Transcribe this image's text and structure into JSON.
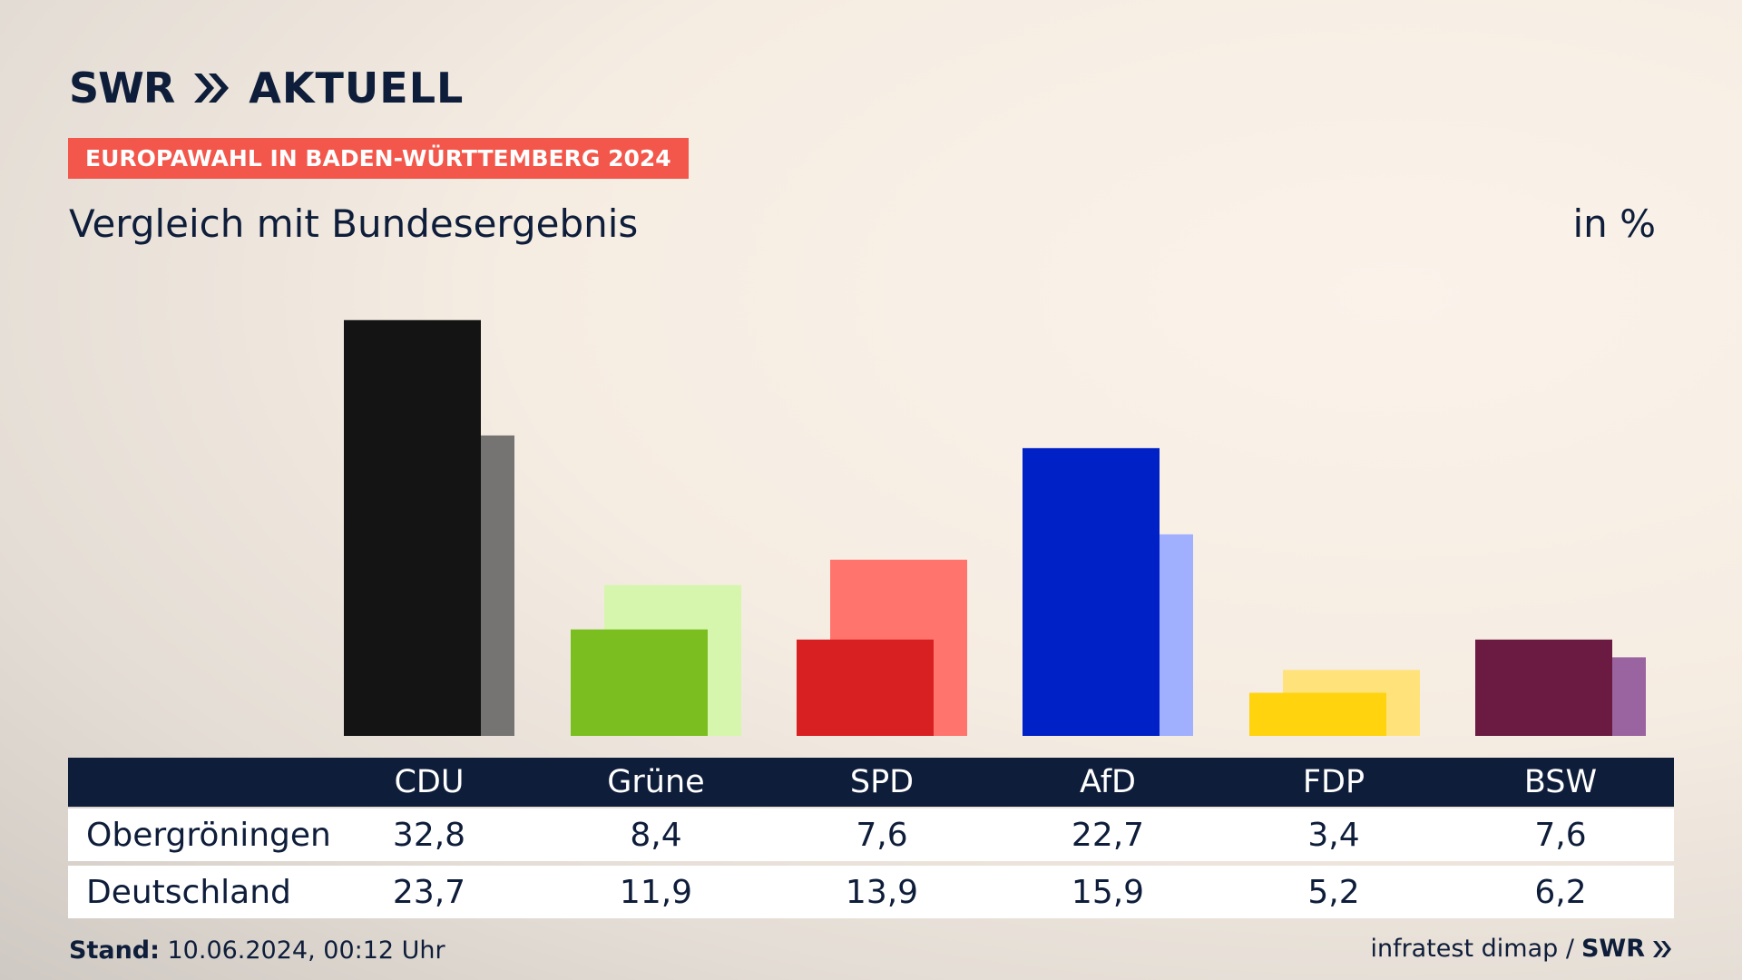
{
  "brand": {
    "swr": "SWR",
    "aktuell": "AKTUELL",
    "icon": "double-chevron-right-icon"
  },
  "topic": "EUROPAWAHL IN BADEN-WÜRTTEMBERG 2024",
  "subtitle": "Vergleich mit Bundesergebnis",
  "unit": "in %",
  "colors": {
    "navy": "#0e1d3a",
    "badge": "#f3564a"
  },
  "chart_data": {
    "type": "bar",
    "categories": [
      "CDU",
      "Grüne",
      "SPD",
      "AfD",
      "FDP",
      "BSW"
    ],
    "series": [
      {
        "name": "Obergröningen",
        "values": [
          32.8,
          8.4,
          7.6,
          22.7,
          3.4,
          7.6
        ],
        "colors": [
          "#141414",
          "#7abf1f",
          "#d81f22",
          "#0021c6",
          "#ffd30e",
          "#6b1a42"
        ]
      },
      {
        "name": "Deutschland",
        "values": [
          23.7,
          11.9,
          13.9,
          15.9,
          5.2,
          6.2
        ],
        "colors": [
          "#767472",
          "#d7f6ad",
          "#ff746c",
          "#a0b0ff",
          "#ffe37a",
          "#9a64a0"
        ]
      }
    ],
    "ylim": [
      0,
      34
    ],
    "grid": false
  },
  "table": {
    "headers": [
      "CDU",
      "Grüne",
      "SPD",
      "AfD",
      "FDP",
      "BSW"
    ],
    "rows": [
      {
        "label": "Obergröningen",
        "values": [
          "32,8",
          "8,4",
          "7,6",
          "22,7",
          "3,4",
          "7,6"
        ]
      },
      {
        "label": "Deutschland",
        "values": [
          "23,7",
          "11,9",
          "13,9",
          "15,9",
          "5,2",
          "6,2"
        ]
      }
    ]
  },
  "footer": {
    "stand_label": "Stand:",
    "stand_value": " 10.06.2024, 00:12 Uhr",
    "source": "infratest dimap /",
    "source_brand": "SWR"
  }
}
